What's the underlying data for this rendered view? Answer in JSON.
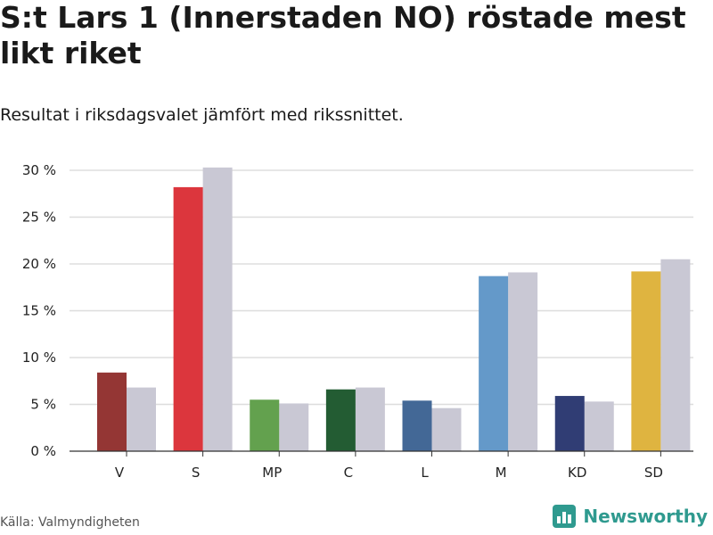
{
  "header": {
    "title": "S:t Lars 1 (Innerstaden NO) röstade mest likt riket",
    "subtitle": "Resultat i riksdagsvalet jämfört med rikssnittet."
  },
  "footer": {
    "source": "Källa: Valmyndigheten",
    "brand": "Newsworthy",
    "brand_icon": "bar-chart-logo-icon"
  },
  "chart_data": {
    "type": "bar",
    "categories": [
      "V",
      "S",
      "MP",
      "C",
      "L",
      "M",
      "KD",
      "SD"
    ],
    "series": [
      {
        "name": "S:t Lars 1 (Innerstaden NO)",
        "values": [
          8.4,
          28.2,
          5.5,
          6.6,
          5.4,
          18.7,
          5.9,
          19.2
        ],
        "colors": [
          "#943634",
          "#dc363d",
          "#63a14e",
          "#235c33",
          "#436896",
          "#6499c9",
          "#303d74",
          "#dfb440"
        ]
      },
      {
        "name": "Riket",
        "values": [
          6.8,
          30.3,
          5.1,
          6.8,
          4.6,
          19.1,
          5.3,
          20.5
        ],
        "color": "#c9c8d4"
      }
    ],
    "yticks": [
      0,
      5,
      10,
      15,
      20,
      25,
      30
    ],
    "ytick_labels": [
      "0 %",
      "5 %",
      "10 %",
      "15 %",
      "20 %",
      "25 %",
      "30 %"
    ],
    "ylim": [
      0,
      30
    ],
    "grid": true,
    "xlabel": "",
    "ylabel": ""
  }
}
